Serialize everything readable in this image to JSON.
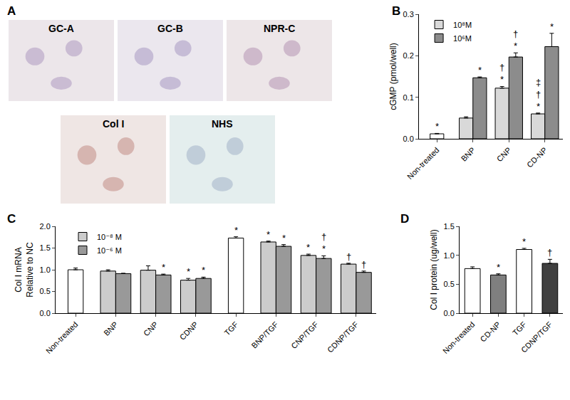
{
  "panel_a": {
    "panel": "A",
    "images": [
      {
        "label": "GC-A"
      },
      {
        "label": "GC-B"
      },
      {
        "label": "NPR-C"
      },
      {
        "label": "Col I"
      },
      {
        "label": "NHS"
      }
    ]
  },
  "chart_data": [
    {
      "panel": "B",
      "type": "bar",
      "y_label": "cGMP (pmol/well)",
      "categories": [
        "Non-treated",
        "BNP",
        "CNP",
        "CD-NP"
      ],
      "series": [
        {
          "name": "10⁸M",
          "color": "#d9d9d9",
          "colors": [
            "#ffffff",
            "#d9d9d9",
            "#d9d9d9",
            "#d9d9d9"
          ],
          "values": [
            0.012,
            0.05,
            0.122,
            0.06
          ],
          "errors": [
            0.001,
            0.003,
            0.004,
            0.002
          ],
          "significance": [
            [
              "*"
            ],
            [],
            [
              "†",
              "*"
            ],
            [
              "‡",
              "†",
              "*"
            ]
          ]
        },
        {
          "name": "10⁶M",
          "color": "#8c8c8c",
          "values": [
            null,
            0.147,
            0.197,
            0.222
          ],
          "errors": [
            null,
            0.002,
            0.01,
            0.032
          ],
          "significance": [
            [],
            [
              "*"
            ],
            [
              "†",
              "*"
            ],
            [
              "*"
            ]
          ]
        }
      ],
      "ylim": [
        0,
        0.3
      ],
      "yticks": [
        {
          "value": 0,
          "label": "0.0"
        },
        0.1,
        0.2,
        0.3
      ],
      "legend": "upper left",
      "grid": false
    },
    {
      "panel": "C",
      "type": "bar",
      "y_label": "Col I mRNA\nRelative to NC",
      "categories": [
        "Non-treated",
        "BNP",
        "CNP",
        "CDNP",
        "TGF",
        "BNP/TGF",
        "CNP/TGF",
        "CDNP/TGF"
      ],
      "series": [
        {
          "name": "10⁻⁸ M",
          "color": "#cccccc",
          "colors": [
            "#ffffff",
            "#cccccc",
            "#cccccc",
            "#cccccc",
            "#ffffff",
            "#cccccc",
            "#cccccc",
            "#cccccc"
          ],
          "values": [
            1.0,
            0.97,
            0.99,
            0.76,
            1.73,
            1.64,
            1.33,
            1.13
          ],
          "errors": [
            0.04,
            0.03,
            0.1,
            0.04,
            0.03,
            0.02,
            0.03,
            0.02
          ],
          "significance": [
            [],
            [],
            [],
            [
              "*"
            ],
            [
              "*"
            ],
            [
              "*"
            ],
            [
              "*"
            ],
            [
              "†"
            ]
          ]
        },
        {
          "name": "10⁻⁶ M",
          "color": "#999999",
          "values": [
            null,
            0.91,
            0.88,
            0.8,
            null,
            1.54,
            1.26,
            0.94
          ],
          "errors": [
            null,
            0.01,
            0.02,
            0.03,
            null,
            0.04,
            0.06,
            0.03
          ],
          "significance": [
            [],
            [],
            [
              "*"
            ],
            [
              "*"
            ],
            [],
            [
              "*"
            ],
            [
              "†",
              "*"
            ],
            [
              "†"
            ]
          ]
        }
      ],
      "ylim": [
        0,
        2.0
      ],
      "yticks": [
        {
          "value": 0,
          "label": "0.0"
        },
        0.5,
        {
          "value": 1,
          "label": "1.0"
        },
        1.5,
        {
          "value": 2,
          "label": "2.0"
        }
      ],
      "legend": "upper left",
      "grid": false
    },
    {
      "panel": "D",
      "type": "bar",
      "y_label": "Col I protein (ug/well)",
      "categories": [
        "Non-treated",
        "CD-NP",
        "TGF",
        "CDNP/TGF"
      ],
      "series": [
        {
          "color": "#ffffff",
          "colors": [
            "#ffffff",
            "#7f7f7f",
            "#ffffff",
            "#404040"
          ],
          "values": [
            0.77,
            0.66,
            1.1,
            0.86
          ],
          "errors": [
            0.03,
            0.02,
            0.02,
            0.07
          ],
          "significance": [
            [],
            [
              "*"
            ],
            [
              "*"
            ],
            [
              "†"
            ]
          ]
        }
      ],
      "ylim": [
        0,
        1.5
      ],
      "yticks": [
        {
          "value": 0,
          "label": "0.0"
        },
        0.5,
        {
          "value": 1,
          "label": "1.0"
        },
        1.5
      ],
      "grid": false
    }
  ]
}
